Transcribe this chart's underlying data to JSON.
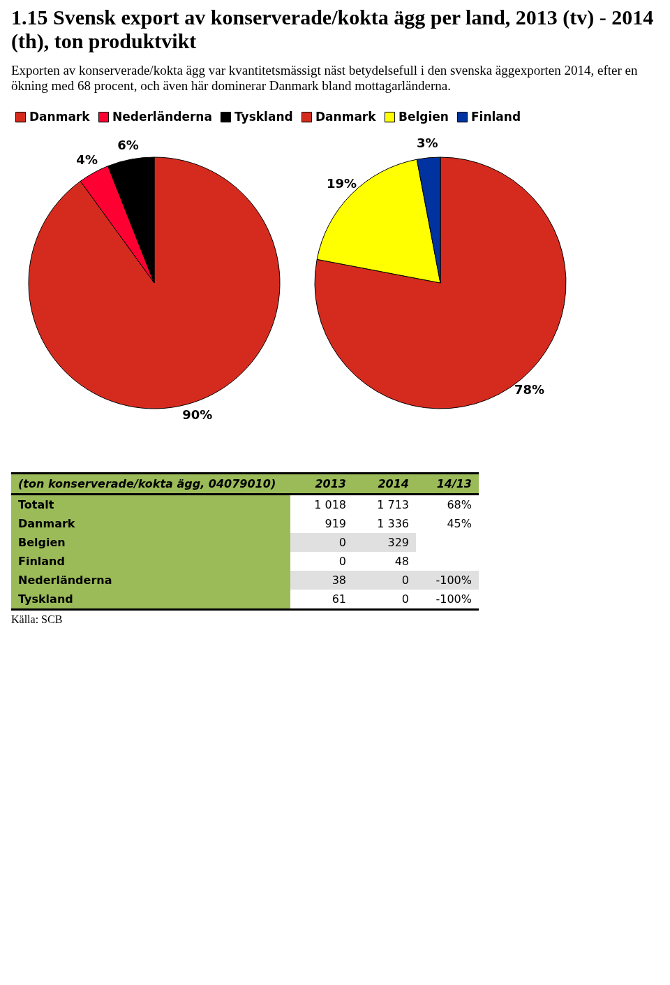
{
  "chart_data": [
    {
      "type": "pie",
      "title": "1.15 Svensk export av konserverade/kokta ägg per land, 2013 (tv) - 2014 (th), ton produktvikt",
      "subtitle": "Exporten av konserverade/kokta ägg var kvantitetsmässigt näst betydelsefull i den svenska äggexporten 2014, efter en ökning med 68 procent, och även här dominerar Danmark bland mottagarländerna.",
      "categories": [
        "Danmark",
        "Nederländerna",
        "Tyskland"
      ],
      "values": [
        90,
        4,
        6
      ],
      "value_labels": [
        "90%",
        "4%",
        "6%"
      ],
      "colors": [
        "#d52b1e",
        "#ff0033",
        "#000000"
      ],
      "legend": "top"
    },
    {
      "type": "pie",
      "categories": [
        "Danmark",
        "Belgien",
        "Finland"
      ],
      "values": [
        78,
        19,
        3
      ],
      "value_labels": [
        "78%",
        "19%",
        "3%"
      ],
      "colors": [
        "#d52b1e",
        "#ffff00",
        "#0033a0"
      ],
      "legend": "top"
    },
    {
      "type": "other",
      "title": "(ton konserverade/kokta ägg, 04079010)",
      "categories": [
        "2013",
        "2014",
        "14/13"
      ],
      "y_categories": [
        "Totalt",
        "Danmark",
        "Belgien",
        "Finland",
        "Nederländerna",
        "Tyskland"
      ],
      "cell_labels": [
        [
          "1 018",
          "1 713",
          "68%"
        ],
        [
          "919",
          "1 336",
          "45%"
        ],
        [
          "0",
          "329",
          null
        ],
        [
          "0",
          "48",
          null
        ],
        [
          "38",
          "0",
          "-100%"
        ],
        [
          "61",
          "0",
          "-100%"
        ]
      ],
      "annotations": [
        "Källa: SCB"
      ]
    }
  ]
}
